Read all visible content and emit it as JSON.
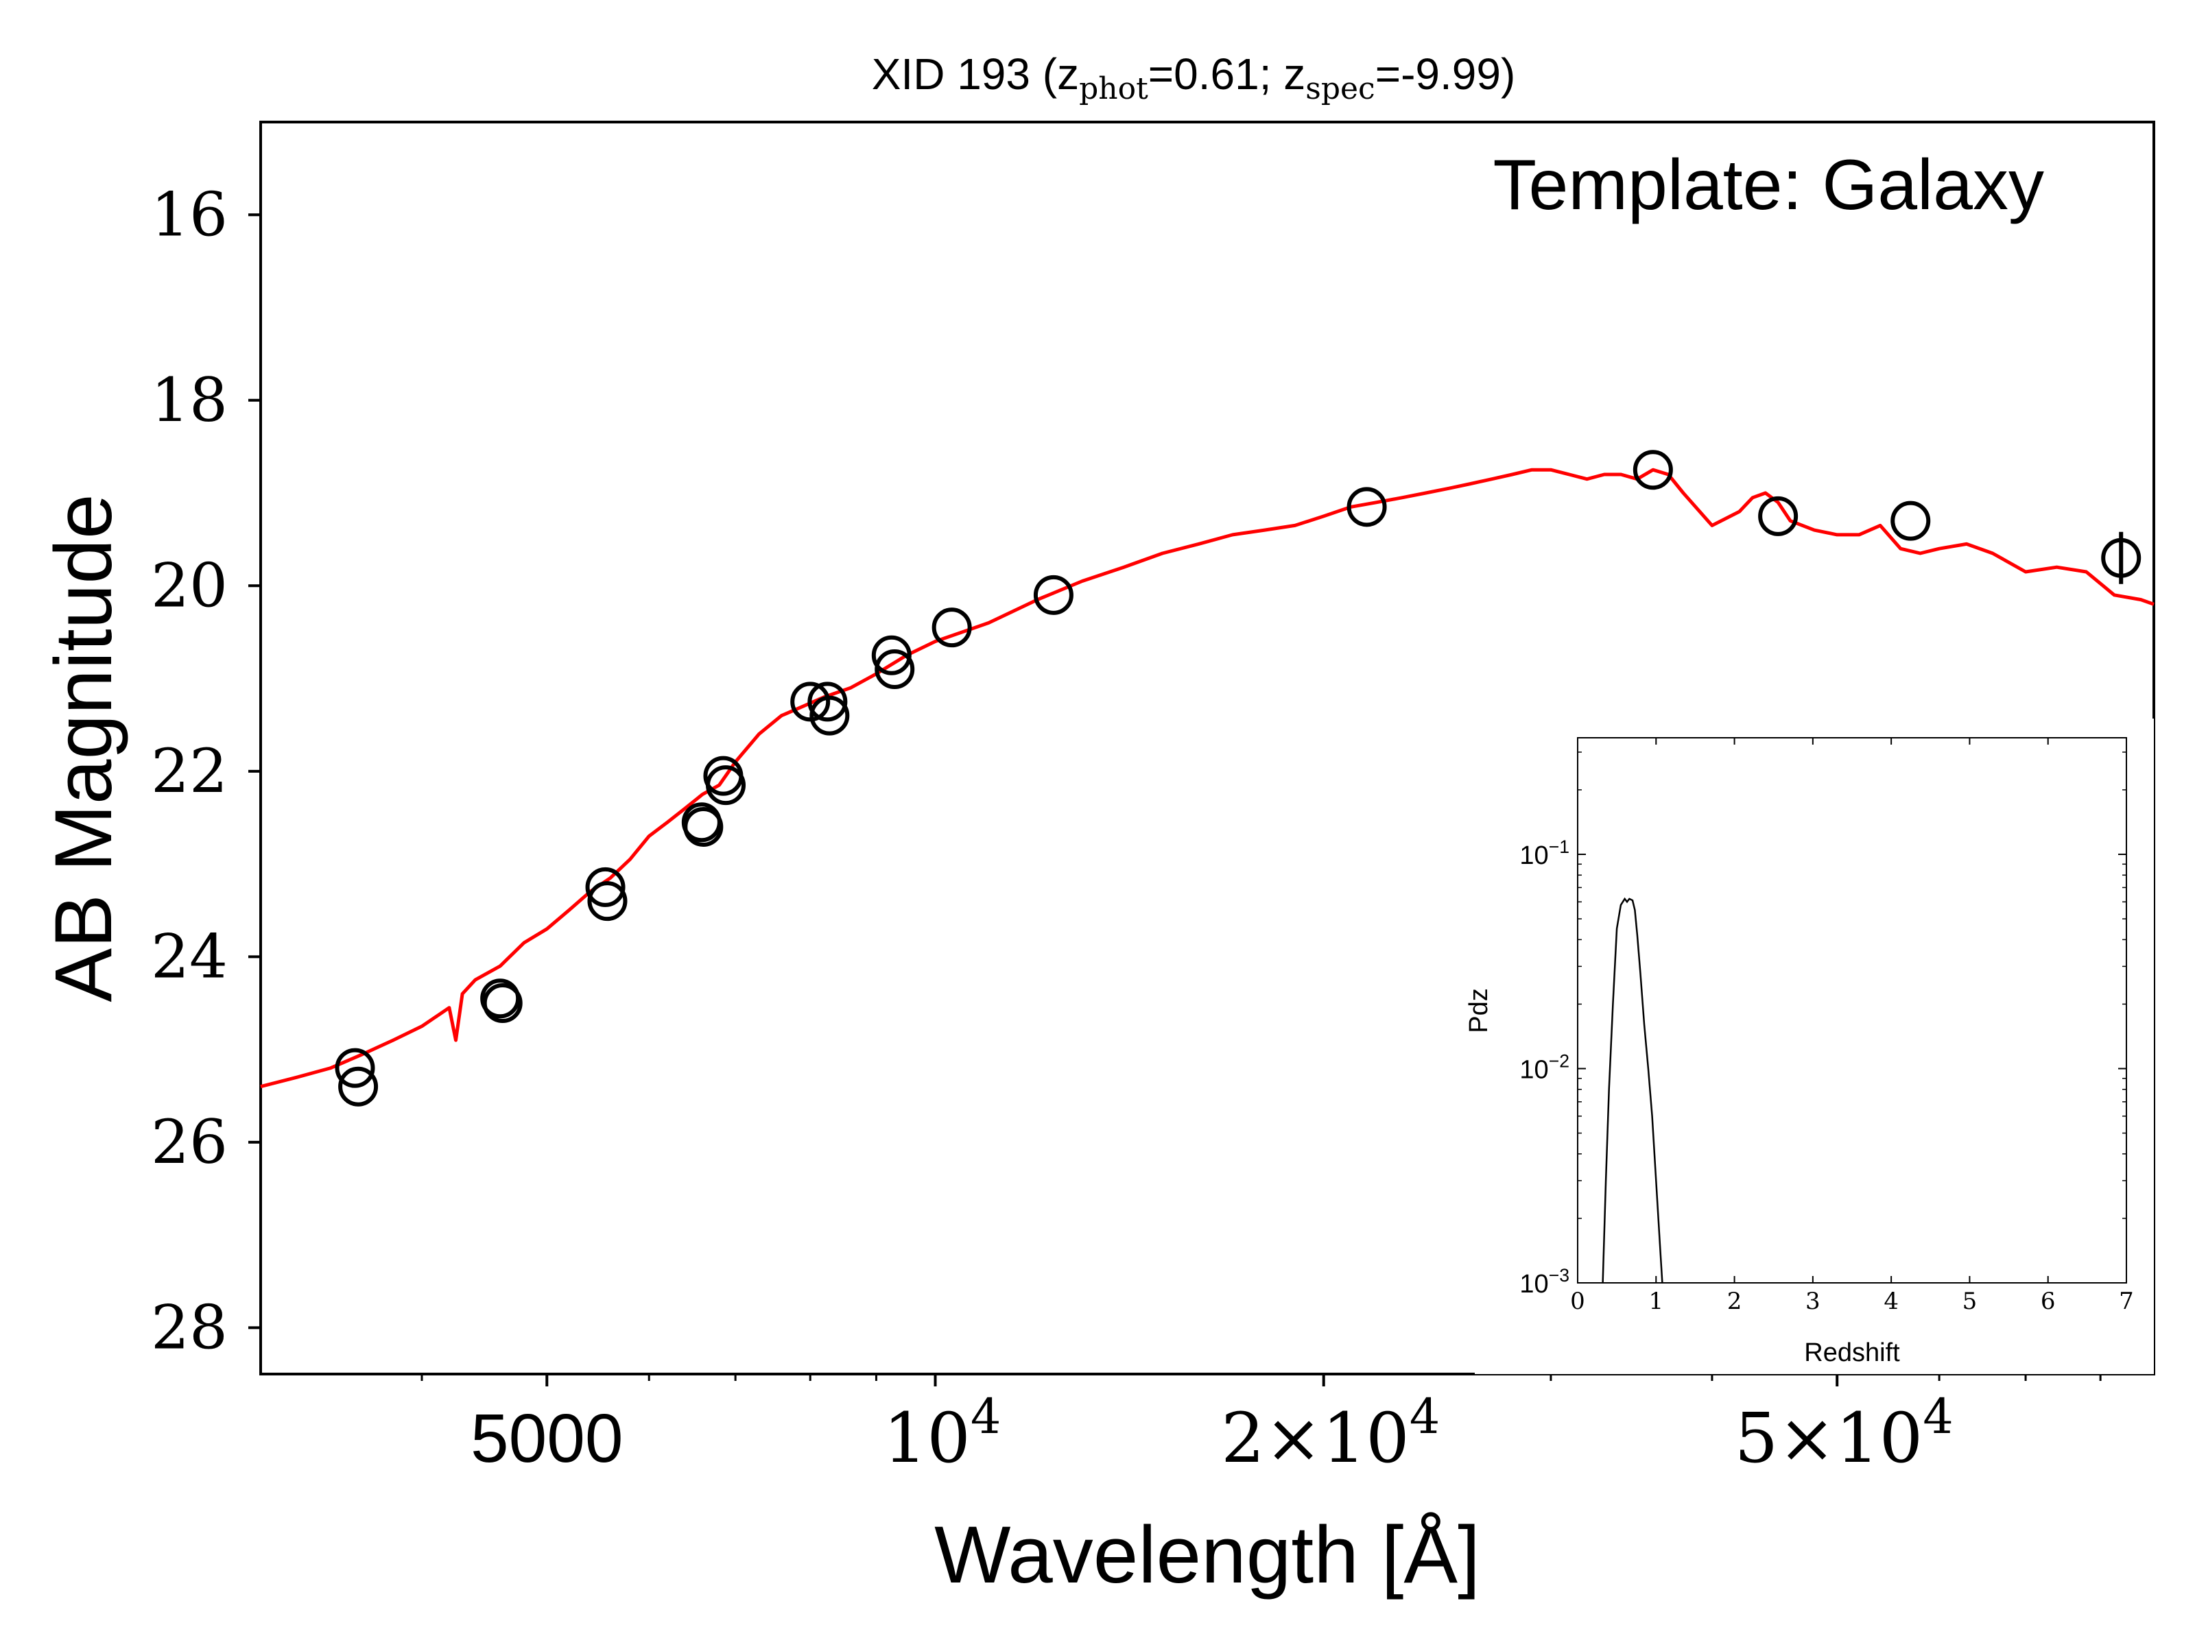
{
  "chart_data": [
    {
      "id": "sed",
      "type": "scatter",
      "title": "XID 193 (z",
      "title_parts": {
        "prefix": "XID 193 (z",
        "sub1": "phot",
        "mid": "=0.61; z",
        "sub2": "spec",
        "suffix": "=-9.99)"
      },
      "annotation": "Template: Galaxy",
      "xlabel": "Wavelength [Å]",
      "ylabel": "AB Magnitude",
      "xscale": "log",
      "xlim": [
        3000,
        88000
      ],
      "ylim": [
        28.5,
        15
      ],
      "y_inverted": true,
      "x_ticks": [
        {
          "value": 5000,
          "label": "5000"
        },
        {
          "value": 10000,
          "base": "10",
          "exp": "4"
        },
        {
          "value": 20000,
          "base": "2×10",
          "exp": "4"
        },
        {
          "value": 50000,
          "base": "5×10",
          "exp": "4"
        }
      ],
      "x_minor_ticks": [
        4000,
        6000,
        7000,
        8000,
        9000,
        30000,
        40000,
        60000,
        70000,
        80000
      ],
      "y_ticks": [
        {
          "value": 16,
          "label": "16"
        },
        {
          "value": 18,
          "label": "18"
        },
        {
          "value": 20,
          "label": "20"
        },
        {
          "value": 22,
          "label": "22"
        },
        {
          "value": 24,
          "label": "24"
        },
        {
          "value": 26,
          "label": "26"
        },
        {
          "value": 28,
          "label": "28"
        }
      ],
      "series": [
        {
          "kind": "line",
          "color": "#ff0000",
          "x": [
            3000,
            3200,
            3400,
            3600,
            3800,
            4000,
            4200,
            4250,
            4300,
            4400,
            4600,
            4800,
            5000,
            5200,
            5400,
            5600,
            5800,
            6000,
            6200,
            6400,
            6600,
            6800,
            7000,
            7300,
            7600,
            7900,
            8200,
            8600,
            9000,
            9500,
            10000,
            11000,
            12000,
            13000,
            14000,
            15000,
            16000,
            17000,
            18000,
            19000,
            20000,
            21000,
            22000,
            23000,
            24000,
            25000,
            26000,
            27000,
            28000,
            29000,
            30000,
            31000,
            32000,
            33000,
            34000,
            35000,
            36000,
            37000,
            38000,
            40000,
            42000,
            43000,
            44000,
            45000,
            46000,
            48000,
            50000,
            52000,
            54000,
            56000,
            58000,
            60000,
            63000,
            66000,
            70000,
            74000,
            78000,
            82000,
            86000,
            88000
          ],
          "y": [
            25.4,
            25.3,
            25.2,
            25.05,
            24.9,
            24.75,
            24.55,
            24.9,
            24.4,
            24.25,
            24.1,
            23.85,
            23.7,
            23.5,
            23.3,
            23.15,
            22.95,
            22.7,
            22.55,
            22.4,
            22.25,
            22.15,
            21.9,
            21.6,
            21.4,
            21.3,
            21.2,
            21.1,
            20.95,
            20.75,
            20.6,
            20.4,
            20.15,
            19.95,
            19.8,
            19.65,
            19.55,
            19.45,
            19.4,
            19.35,
            19.25,
            19.15,
            19.1,
            19.05,
            19.0,
            18.95,
            18.9,
            18.85,
            18.8,
            18.75,
            18.75,
            18.8,
            18.85,
            18.8,
            18.8,
            18.85,
            18.75,
            18.8,
            19.0,
            19.35,
            19.2,
            19.05,
            19.0,
            19.1,
            19.3,
            19.4,
            19.45,
            19.45,
            19.35,
            19.6,
            19.65,
            19.6,
            19.55,
            19.65,
            19.85,
            19.8,
            19.85,
            20.1,
            20.15,
            20.2
          ]
        },
        {
          "kind": "markers",
          "marker": "open-circle",
          "color": "#000000",
          "x": [
            3550,
            3570,
            4600,
            4620,
            5550,
            5570,
            6590,
            6610,
            6850,
            6880,
            8000,
            8250,
            8280,
            9250,
            9300,
            10300,
            12350,
            21600,
            36000,
            45000,
            57000,
            83000
          ],
          "y": [
            25.2,
            25.4,
            24.45,
            24.5,
            23.25,
            23.4,
            22.55,
            22.6,
            22.05,
            22.15,
            21.25,
            21.25,
            21.4,
            20.75,
            20.9,
            20.45,
            20.1,
            19.15,
            18.75,
            19.25,
            19.3,
            19.7
          ]
        }
      ]
    },
    {
      "id": "pdz-inset",
      "type": "line",
      "xlabel": "Redshift",
      "ylabel": "Pdz",
      "yscale": "log",
      "xlim": [
        0,
        7
      ],
      "ylim": [
        0.001,
        0.35
      ],
      "x_ticks": [
        "0",
        "1",
        "2",
        "3",
        "4",
        "5",
        "6",
        "7"
      ],
      "y_ticks": [
        {
          "value": 0.1,
          "base": "10",
          "exp": "−1"
        },
        {
          "value": 0.01,
          "base": "10",
          "exp": "−2"
        },
        {
          "value": 0.001,
          "base": "10",
          "exp": "−3"
        }
      ],
      "series": [
        {
          "color": "#000000",
          "x": [
            0.32,
            0.36,
            0.4,
            0.45,
            0.5,
            0.55,
            0.6,
            0.63,
            0.66,
            0.7,
            0.73,
            0.76,
            0.8,
            0.85,
            0.9,
            0.95,
            1.0,
            1.05,
            1.08
          ],
          "y": [
            0.001,
            0.003,
            0.008,
            0.02,
            0.045,
            0.058,
            0.062,
            0.06,
            0.062,
            0.061,
            0.055,
            0.042,
            0.028,
            0.016,
            0.01,
            0.006,
            0.003,
            0.0015,
            0.001
          ]
        }
      ]
    }
  ]
}
